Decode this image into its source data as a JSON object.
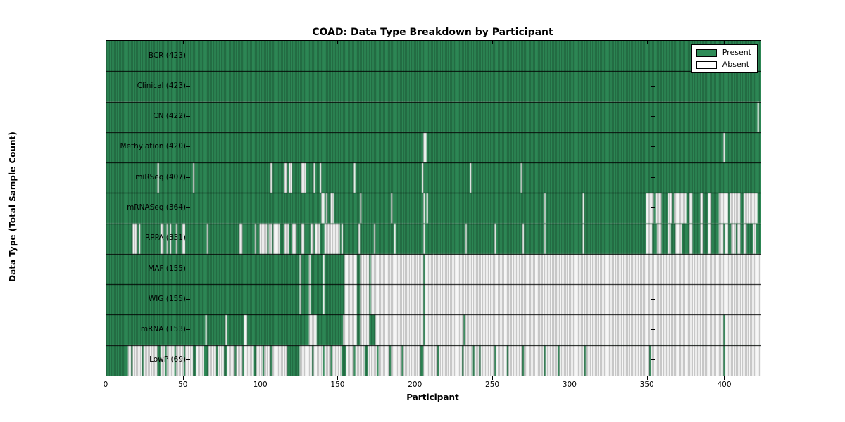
{
  "figure": {
    "title": "COAD: Data Type Breakdown by Participant",
    "xaxis_title": "Participant",
    "yaxis_title": "Data Type (Total Sample Count)",
    "legend": {
      "present_label": "Present",
      "absent_label": "Absent"
    }
  },
  "chart_data": {
    "type": "heatmap",
    "title": "COAD: Data Type Breakdown by Participant",
    "xlabel": "Participant",
    "ylabel": "Data Type (Total Sample Count)",
    "n_participants": 423,
    "xlim": [
      0,
      423
    ],
    "x_ticks": [
      0,
      50,
      100,
      150,
      200,
      250,
      300,
      350,
      400
    ],
    "legend_position": "upper right",
    "grid": false,
    "colors": {
      "present": "#2e8b57",
      "absent": "#ffffff",
      "bar_edge": "rgba(0,0,0,0.42)",
      "row_separator": "#000000"
    },
    "rows": [
      {
        "name": "BCR",
        "count": 423,
        "label": "BCR (423)",
        "absent_ranges": []
      },
      {
        "name": "Clinical",
        "count": 423,
        "label": "Clinical (423)",
        "absent_ranges": []
      },
      {
        "name": "CN",
        "count": 422,
        "label": "CN (422)",
        "absent_ranges": [
          [
            421,
            421
          ]
        ]
      },
      {
        "name": "Methylation",
        "count": 420,
        "label": "Methylation (420)",
        "absent_ranges": [
          [
            205,
            206
          ],
          [
            399,
            399
          ]
        ]
      },
      {
        "name": "miRSeq",
        "count": 407,
        "label": "miRSeq (407)",
        "absent_ranges": [
          [
            33,
            33
          ],
          [
            56,
            56
          ],
          [
            106,
            106
          ],
          [
            115,
            116
          ],
          [
            118,
            119
          ],
          [
            126,
            128
          ],
          [
            134,
            134
          ],
          [
            138,
            138
          ],
          [
            160,
            160
          ],
          [
            204,
            204
          ],
          [
            235,
            235
          ],
          [
            268,
            268
          ]
        ]
      },
      {
        "name": "mRNASeq",
        "count": 364,
        "label": "mRNASeq (364)",
        "absent_ranges": [
          [
            139,
            140
          ],
          [
            142,
            142
          ],
          [
            145,
            146
          ],
          [
            164,
            164
          ],
          [
            184,
            184
          ],
          [
            205,
            205
          ],
          [
            207,
            207
          ],
          [
            283,
            283
          ],
          [
            308,
            308
          ],
          [
            349,
            353
          ],
          [
            355,
            358
          ],
          [
            363,
            365
          ],
          [
            367,
            374
          ],
          [
            377,
            378
          ],
          [
            384,
            385
          ],
          [
            389,
            390
          ],
          [
            396,
            401
          ],
          [
            403,
            409
          ],
          [
            412,
            420
          ]
        ]
      },
      {
        "name": "RPPA",
        "count": 331,
        "label": "RPPA (331)",
        "absent_ranges": [
          [
            17,
            19
          ],
          [
            21,
            21
          ],
          [
            35,
            36
          ],
          [
            39,
            39
          ],
          [
            41,
            41
          ],
          [
            45,
            45
          ],
          [
            49,
            50
          ],
          [
            65,
            65
          ],
          [
            86,
            87
          ],
          [
            96,
            96
          ],
          [
            99,
            103
          ],
          [
            105,
            106
          ],
          [
            108,
            111
          ],
          [
            115,
            117
          ],
          [
            120,
            122
          ],
          [
            126,
            127
          ],
          [
            132,
            133
          ],
          [
            135,
            137
          ],
          [
            141,
            150
          ],
          [
            152,
            152
          ],
          [
            163,
            163
          ],
          [
            173,
            173
          ],
          [
            186,
            186
          ],
          [
            205,
            205
          ],
          [
            232,
            232
          ],
          [
            251,
            251
          ],
          [
            269,
            269
          ],
          [
            283,
            283
          ],
          [
            308,
            308
          ],
          [
            349,
            352
          ],
          [
            356,
            358
          ],
          [
            363,
            364
          ],
          [
            368,
            371
          ],
          [
            377,
            378
          ],
          [
            384,
            385
          ],
          [
            389,
            390
          ],
          [
            396,
            398
          ],
          [
            400,
            401
          ],
          [
            404,
            406
          ],
          [
            408,
            409
          ],
          [
            412,
            413
          ],
          [
            418,
            419
          ]
        ]
      },
      {
        "name": "MAF",
        "count": 155,
        "label": "MAF (155)",
        "absent_ranges": [
          [
            125,
            125
          ],
          [
            131,
            131
          ],
          [
            140,
            140
          ],
          [
            154,
            161
          ],
          [
            164,
            169
          ],
          [
            171,
            204
          ],
          [
            206,
            422
          ]
        ]
      },
      {
        "name": "WIG",
        "count": 155,
        "label": "WIG (155)",
        "absent_ranges": [
          [
            125,
            125
          ],
          [
            131,
            131
          ],
          [
            140,
            140
          ],
          [
            154,
            161
          ],
          [
            164,
            169
          ],
          [
            171,
            204
          ],
          [
            206,
            422
          ]
        ]
      },
      {
        "name": "mRNA",
        "count": 153,
        "label": "mRNA (153)",
        "absent_ranges": [
          [
            64,
            64
          ],
          [
            77,
            77
          ],
          [
            89,
            90
          ],
          [
            131,
            135
          ],
          [
            153,
            161
          ],
          [
            164,
            169
          ],
          [
            174,
            204
          ],
          [
            206,
            230
          ],
          [
            232,
            398
          ],
          [
            400,
            422
          ]
        ]
      },
      {
        "name": "LowP",
        "count": 69,
        "label": "LowP (69)",
        "absent_ranges": [
          [
            14,
            15
          ],
          [
            17,
            22
          ],
          [
            24,
            32
          ],
          [
            35,
            37
          ],
          [
            39,
            43
          ],
          [
            45,
            49
          ],
          [
            51,
            55
          ],
          [
            58,
            62
          ],
          [
            66,
            70
          ],
          [
            72,
            75
          ],
          [
            78,
            82
          ],
          [
            84,
            87
          ],
          [
            89,
            94
          ],
          [
            97,
            100
          ],
          [
            102,
            105
          ],
          [
            107,
            116
          ],
          [
            125,
            132
          ],
          [
            134,
            139
          ],
          [
            141,
            144
          ],
          [
            146,
            151
          ],
          [
            155,
            159
          ],
          [
            161,
            166
          ],
          [
            169,
            174
          ],
          [
            176,
            182
          ],
          [
            184,
            190
          ],
          [
            192,
            202
          ],
          [
            205,
            213
          ],
          [
            215,
            229
          ],
          [
            231,
            236
          ],
          [
            238,
            240
          ],
          [
            242,
            250
          ],
          [
            252,
            258
          ],
          [
            260,
            268
          ],
          [
            270,
            282
          ],
          [
            284,
            291
          ],
          [
            293,
            308
          ],
          [
            310,
            350
          ],
          [
            352,
            398
          ],
          [
            400,
            422
          ]
        ]
      }
    ]
  }
}
